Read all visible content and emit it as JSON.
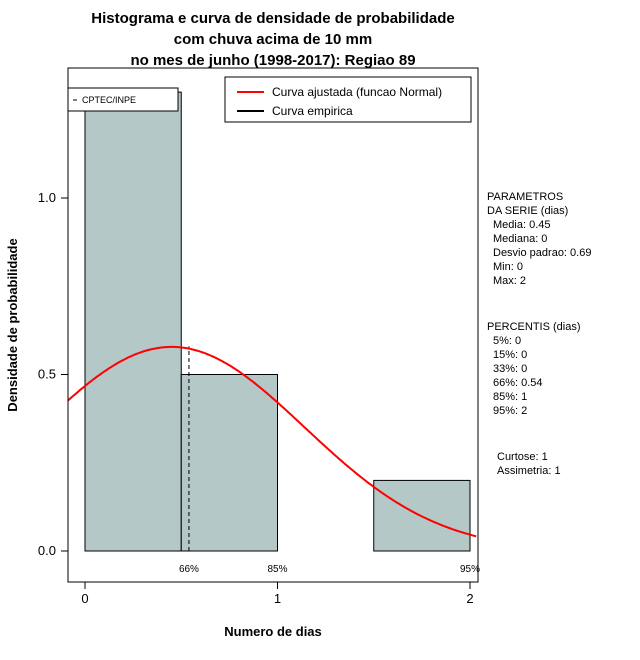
{
  "title": {
    "line1": "Histograma e curva de densidade de probabilidade",
    "line2": "com chuva acima de 10 mm",
    "line3": "no mes de junho (1998-2017): Regiao 89"
  },
  "watermark": "CPTEC/INPE",
  "legend": {
    "items": [
      {
        "label": "Curva ajustada (funcao Normal)",
        "color": "#ff0000"
      },
      {
        "label": "Curva empirica",
        "color": "#000000"
      }
    ]
  },
  "chart_data": {
    "type": "bar",
    "subtype": "histogram-with-density-curve",
    "xlabel": "Numero de dias",
    "ylabel": "Densidade de probabilidade",
    "xlim": [
      -0.088,
      2.04
    ],
    "ylim": [
      0,
      1.368
    ],
    "x_ticks": [
      0,
      1,
      2
    ],
    "x_tick_labels": [
      "0",
      "1",
      "2"
    ],
    "y_ticks": [
      0,
      0.5,
      1.0
    ],
    "y_tick_labels": [
      "0.0",
      "0.5",
      "1.0"
    ],
    "bars": [
      {
        "x0": 0.0,
        "x1": 0.5,
        "density": 1.3
      },
      {
        "x0": 0.5,
        "x1": 1.0,
        "density": 0.5
      },
      {
        "x0": 1.5,
        "x1": 2.0,
        "density": 0.2
      }
    ],
    "normal_curve": {
      "mean": 0.45,
      "sd": 0.69
    },
    "percentile_lines": [
      {
        "label": "66%",
        "x": 0.54,
        "top": 0.58
      },
      {
        "label": "85%",
        "x": 1.0,
        "top": 0.5
      },
      {
        "label": "95%",
        "x": 2.0,
        "top": 0.2
      }
    ],
    "bar_fill": "#b4c8c8",
    "curve_color": "#ff0000",
    "empirical_color": "#000000",
    "grid": false,
    "legend_position": "top-center"
  },
  "side_panel": {
    "params_title1": "PARAMETROS",
    "params_title2": "DA SERIE (dias)",
    "params": [
      "Media: 0.45",
      "Mediana: 0",
      "Desvio padrao: 0.69",
      "Min: 0",
      "Max: 2"
    ],
    "percentis_title": "PERCENTIS (dias)",
    "percentis": [
      "5%: 0",
      "15%: 0",
      "33%: 0",
      "66%: 0.54",
      "85%: 1",
      "95%: 2"
    ],
    "extra": [
      "Curtose: 1",
      "Assimetria: 1"
    ]
  }
}
